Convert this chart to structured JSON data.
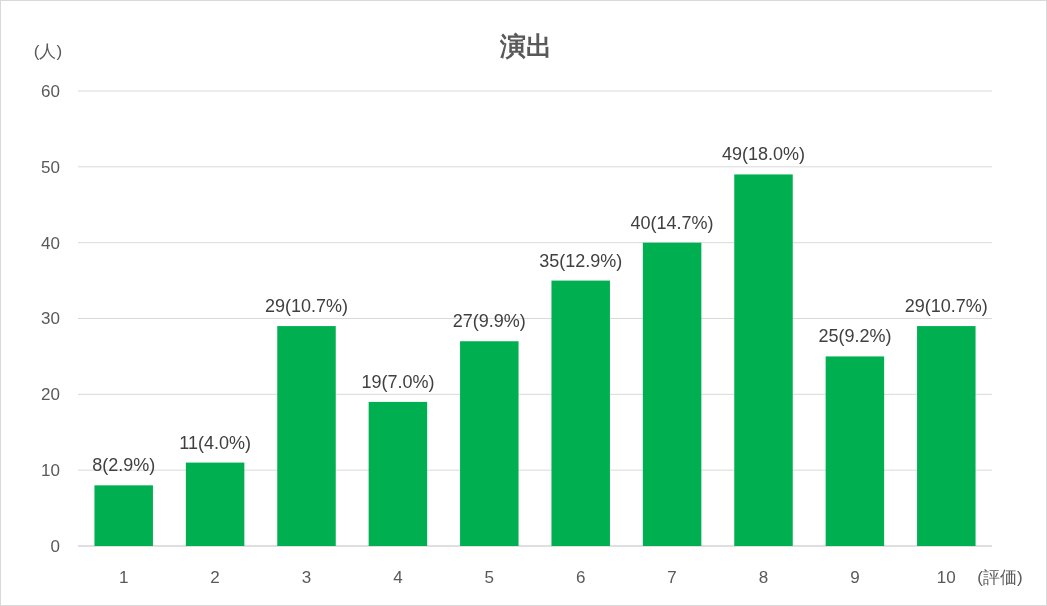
{
  "chart_data": {
    "type": "bar",
    "title": "演出",
    "ylabel": "(人)",
    "xlabel": "(評価)",
    "categories": [
      "1",
      "2",
      "3",
      "4",
      "5",
      "6",
      "7",
      "8",
      "9",
      "10"
    ],
    "values": [
      8,
      11,
      29,
      19,
      27,
      35,
      40,
      49,
      25,
      29
    ],
    "value_labels": [
      "8(2.9%)",
      "11(4.0%)",
      "29(10.7%)",
      "19(7.0%)",
      "27(9.9%)",
      "35(12.9%)",
      "40(14.7%)",
      "49(18.0%)",
      "25(9.2%)",
      "29(10.7%)"
    ],
    "color": "#00b050",
    "ylim": [
      0,
      60
    ],
    "yticks": [
      0,
      10,
      20,
      30,
      40,
      50,
      60
    ],
    "grid": "y"
  }
}
